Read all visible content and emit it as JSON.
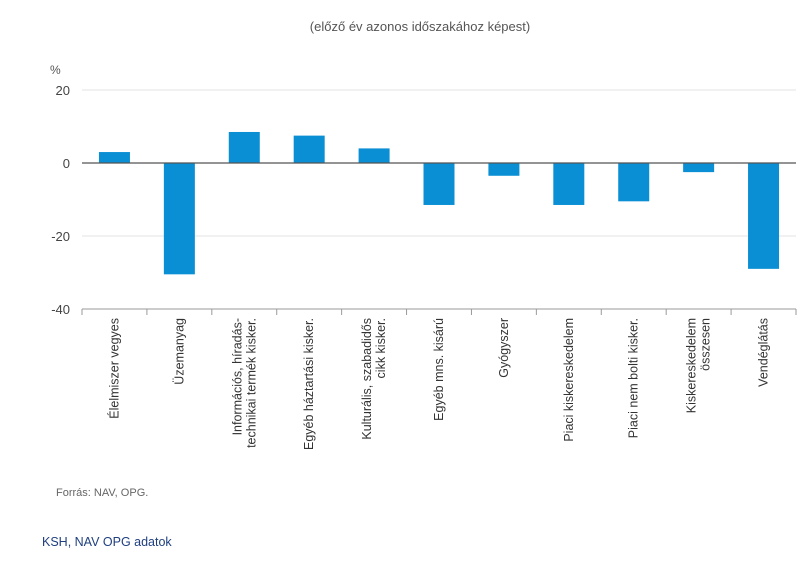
{
  "chart_data": {
    "type": "bar",
    "subtitle": "(előző év azonos időszakához képest)",
    "unit_label": "%",
    "categories": [
      [
        "Élelmiszer vegyes"
      ],
      [
        "Üzemanyag"
      ],
      [
        "Információs, híradás-",
        "technikai termék kisker."
      ],
      [
        "Egyéb háztartási kisker."
      ],
      [
        "Kulturális, szabadidős",
        "cikk kisker."
      ],
      [
        "Egyéb mns. kisárú"
      ],
      [
        "Gyógyszer"
      ],
      [
        "Piaci kiskereskedelem"
      ],
      [
        "Piaci nem bolti kisker."
      ],
      [
        "Kiskereskedelem",
        "összesen"
      ],
      [
        "Vendéglátás"
      ]
    ],
    "values": [
      3,
      -30.5,
      8.5,
      7.5,
      4,
      -11.5,
      -3.5,
      -11.5,
      -10.5,
      -2.5,
      -29
    ],
    "ylim": [
      -40,
      20
    ],
    "yticks": [
      20,
      0,
      -20,
      -40
    ],
    "bar_color": "#0a8fd4",
    "grid": true,
    "source": "Forrás: NAV, OPG."
  },
  "footer": {
    "caption": "KSH, NAV OPG adatok"
  }
}
